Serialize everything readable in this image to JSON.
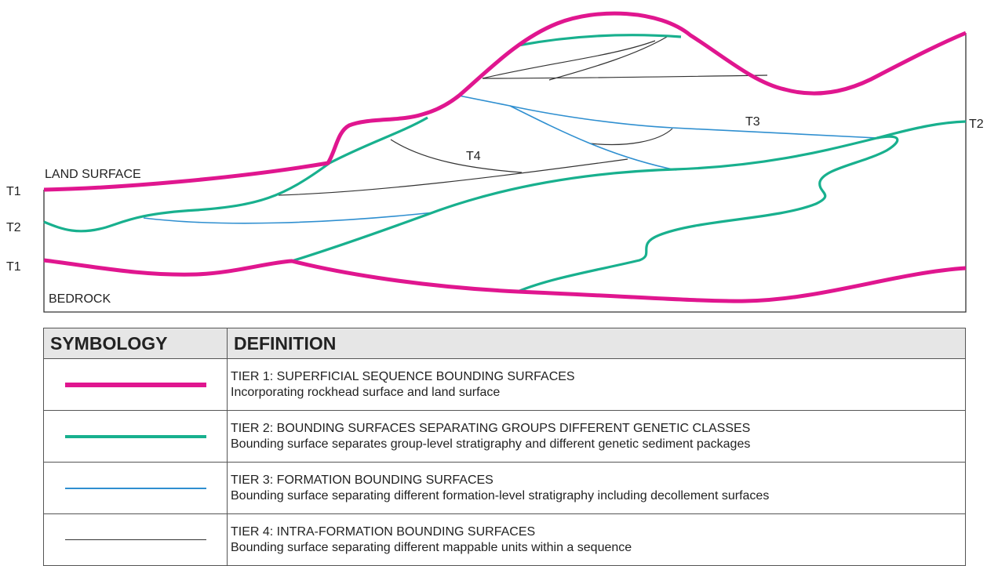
{
  "labels": {
    "land_surface": "LAND SURFACE",
    "bedrock": "BEDROCK",
    "t1_upper": "T1",
    "t2_left": "T2",
    "t1_lower": "T1",
    "t2_right": "T2",
    "t3": "T3",
    "t4": "T4"
  },
  "colors": {
    "tier1": "#e0168f",
    "tier2": "#18b08e",
    "tier3": "#2f8fd0",
    "tier4": "#333333"
  },
  "legend": {
    "header_symbology": "SYMBOLOGY",
    "header_definition": "DEFINITION",
    "rows": [
      {
        "title": "TIER 1: SUPERFICIAL SEQUENCE BOUNDING SURFACES",
        "desc": "Incorporating rockhead surface and land surface"
      },
      {
        "title": "TIER 2: BOUNDING SURFACES SEPARATING GROUPS DIFFERENT GENETIC CLASSES",
        "desc": "Bounding surface separates group-level stratigraphy and different genetic sediment packages"
      },
      {
        "title": "TIER 3: FORMATION BOUNDING SURFACES",
        "desc": "Bounding surface separating different formation-level stratigraphy including decollement surfaces"
      },
      {
        "title": "TIER 4: INTRA-FORMATION BOUNDING SURFACES",
        "desc": "Bounding surface separating different mappable units within a sequence"
      }
    ]
  }
}
